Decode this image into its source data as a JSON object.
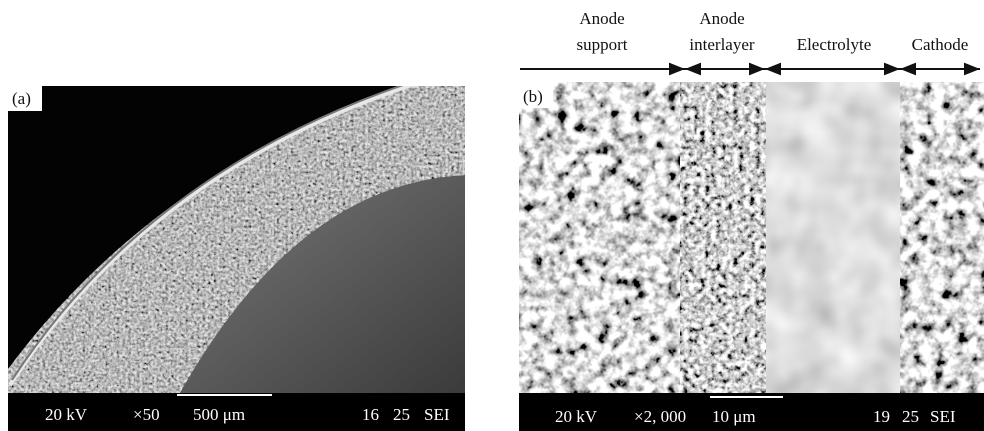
{
  "panel_a": {
    "label": "(a)",
    "info_bar": {
      "voltage": "20 kV",
      "magnification": "×50",
      "scale": "500 μm",
      "code_1": "16",
      "code_2": "25",
      "mode": "SEI"
    }
  },
  "panel_b": {
    "label": "(b)",
    "layers": [
      {
        "lines": [
          "Anode",
          "support"
        ]
      },
      {
        "lines": [
          "Anode",
          "interlayer"
        ]
      },
      {
        "lines": [
          "Electrolyte"
        ]
      },
      {
        "lines": [
          "Cathode"
        ]
      }
    ],
    "info_bar": {
      "voltage": "20 kV",
      "magnification": "×2, 000",
      "scale": "10 μm",
      "code_1": "19",
      "code_2": "25",
      "mode": "SEI"
    }
  }
}
